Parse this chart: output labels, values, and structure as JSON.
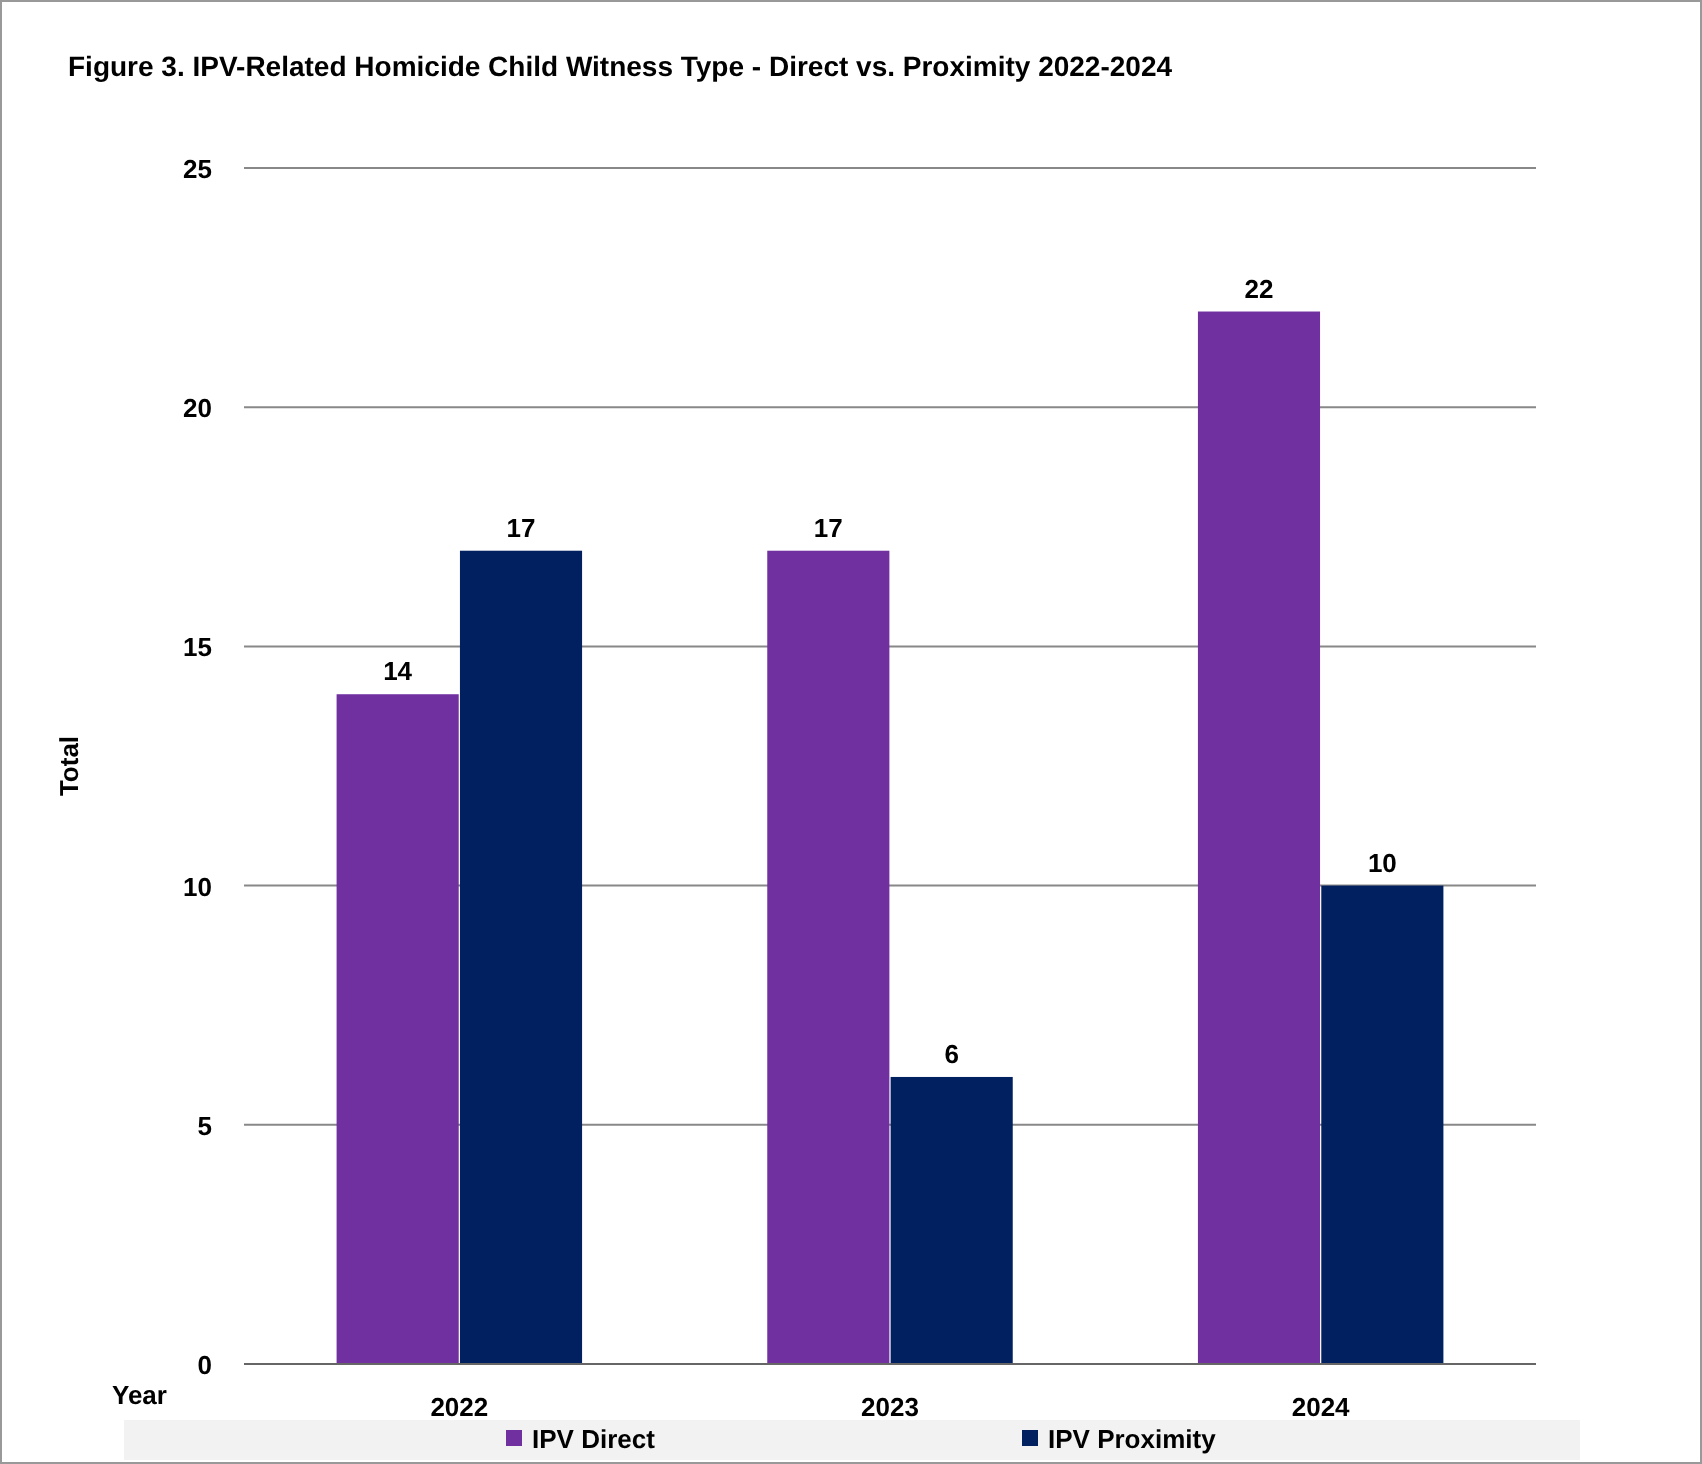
{
  "chart_data": {
    "type": "bar",
    "title": "Figure 3. IPV-Related Homicide Child Witness Type - Direct vs. Proximity 2022-2024",
    "xlabel": "Year",
    "ylabel": "Total",
    "categories": [
      "2022",
      "2023",
      "2024"
    ],
    "series": [
      {
        "name": "IPV Direct",
        "color": "#7030a0",
        "values": [
          14,
          17,
          22
        ]
      },
      {
        "name": "IPV Proximity",
        "color": "#002060",
        "values": [
          17,
          6,
          10
        ]
      }
    ],
    "ylim": [
      0,
      25
    ],
    "yticks": [
      0,
      5,
      10,
      15,
      20,
      25
    ],
    "grid": "y",
    "legend": "bottom",
    "data_labels": true
  }
}
